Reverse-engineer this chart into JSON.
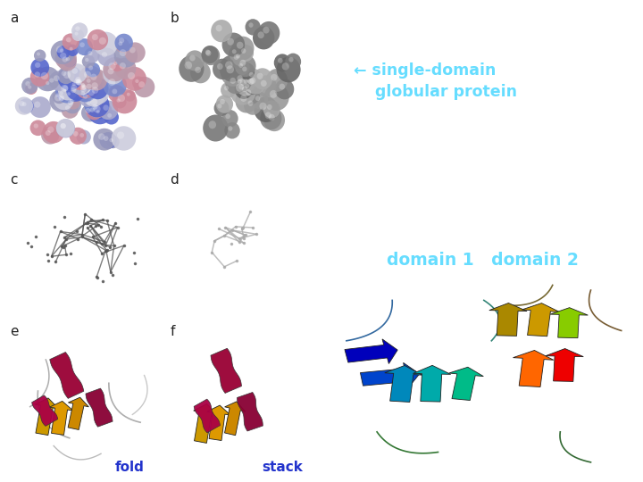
{
  "bg_left": "#ffffff",
  "bg_right": "#0a14b0",
  "text_arrow_label": "← single-domain\n    globular protein",
  "text_arrow_color": "#66ddff",
  "text_arrow_fontsize": 12.5,
  "text_domain_label": "domain 1   domain 2",
  "text_domain_color": "#66ddff",
  "text_domain_fontsize": 13.5,
  "label_color": "#222222",
  "label_fontsize": 11,
  "fold_label": "fold",
  "stack_label": "stack",
  "fold_stack_color": "#2233cc",
  "fold_stack_fontsize": 11,
  "sphere_colors_a": [
    "#aaaacc",
    "#5566cc",
    "#cc8899",
    "#ccccdd",
    "#7788cc",
    "#bb99aa",
    "#9999bb"
  ],
  "sphere_colors_b": [
    "#888888",
    "#999999",
    "#777777",
    "#aaaaaa",
    "#666666"
  ],
  "wire_color_c": "#555555",
  "wire_color_d": "#aaaaaa",
  "domain1_colors": [
    "#0000bb",
    "#0044cc",
    "#0088bb",
    "#00aaaa",
    "#00bb88",
    "#00cc44",
    "#33aa00"
  ],
  "domain2_colors": [
    "#aa8800",
    "#cc9900",
    "#ddbb00",
    "#ffee00",
    "#ff6600",
    "#ee0000",
    "#88cc00",
    "#44ee00"
  ]
}
